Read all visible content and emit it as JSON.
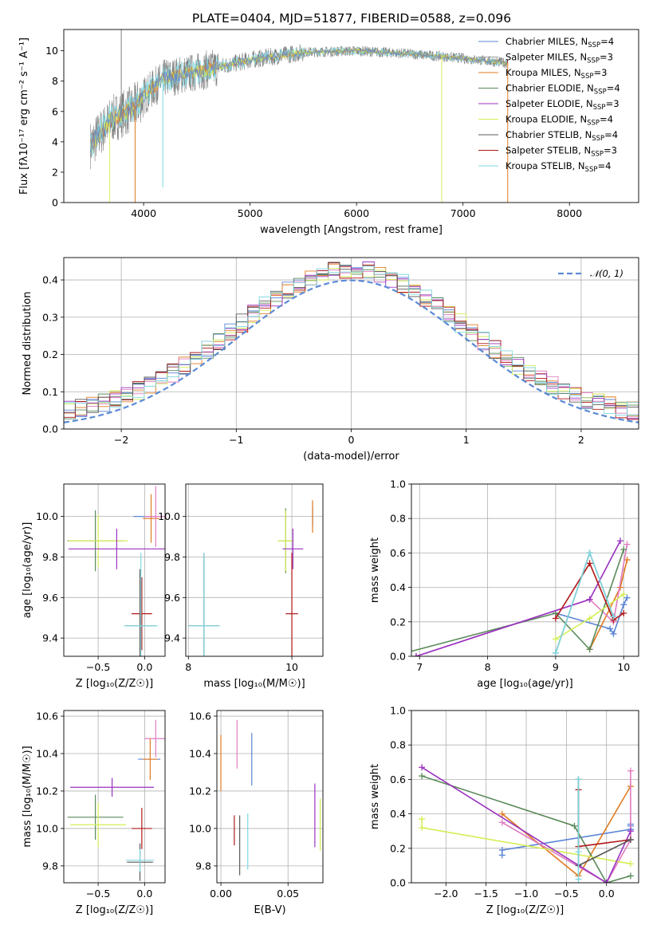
{
  "title": "PLATE=0404, MJD=51877, FIBERID=0588, z=0.096",
  "colors": {
    "Chabrier MILES": "#5b84d6",
    "Salpeter MILES": "#a0a0a0",
    "Kroupa MILES": "#e07b22",
    "Chabrier ELODIE": "#5a8a5a",
    "Salpeter ELODIE": "#9932c0",
    "Kroupa ELODIE": "#d4ee55",
    "Chabrier STELIB": "#5a5a5a",
    "Salpeter STELIB": "#b01818",
    "Kroupa STELIB": "#7fd8e0",
    "pink": "#e07bc0",
    "spectrum": "#808080",
    "gauss": "#5b8ad6"
  },
  "chart_data": [
    {
      "id": "spectrum",
      "type": "line",
      "xlabel": "wavelength [Angstrom, rest frame]",
      "ylabel": "Flux [fλ10⁻¹⁷ erg cm⁻² s⁻¹ A⁻¹]",
      "xlim": [
        3250,
        8650
      ],
      "ylim": [
        0,
        11.4
      ],
      "xticks": [
        "4000",
        "5000",
        "6000",
        "7000",
        "8000"
      ],
      "yticks": [
        "0",
        "2",
        "4",
        "6",
        "8",
        "10"
      ],
      "legend_position": "right",
      "series": [
        {
          "name": "Chabrier MILES, N",
          "sub": "SSP",
          "suffix": "=4"
        },
        {
          "name": "Salpeter MILES, N",
          "sub": "SSP",
          "suffix": "=3"
        },
        {
          "name": "Kroupa MILES, N",
          "sub": "SSP",
          "suffix": "=3"
        },
        {
          "name": "Chabrier ELODIE, N",
          "sub": "SSP",
          "suffix": "=4"
        },
        {
          "name": "Salpeter ELODIE, N",
          "sub": "SSP",
          "suffix": "=3"
        },
        {
          "name": "Kroupa ELODIE, N",
          "sub": "SSP",
          "suffix": "=4"
        },
        {
          "name": "Chabrier STELIB, N",
          "sub": "SSP",
          "suffix": "=4"
        },
        {
          "name": "Salpeter STELIB, N",
          "sub": "SSP",
          "suffix": "=3"
        },
        {
          "name": "Kroupa STELIB, N",
          "sub": "SSP",
          "suffix": "=4"
        }
      ],
      "envelope": [
        [
          3500,
          3.8
        ],
        [
          3700,
          5.5
        ],
        [
          3900,
          6.2
        ],
        [
          4000,
          7.0
        ],
        [
          4200,
          8.2
        ],
        [
          4500,
          8.6
        ],
        [
          5000,
          9.4
        ],
        [
          5500,
          9.9
        ],
        [
          6000,
          10.0
        ],
        [
          6500,
          9.8
        ],
        [
          7000,
          9.5
        ],
        [
          7400,
          9.2
        ]
      ]
    },
    {
      "id": "residuals",
      "type": "histogram",
      "xlabel": "(data-model)/error",
      "ylabel": "Normed distribution",
      "xlim": [
        -2.5,
        2.5
      ],
      "ylim": [
        0,
        0.46
      ],
      "xticks": [
        "−2",
        "−1",
        "0",
        "1",
        "2"
      ],
      "yticks": [
        "0.0",
        "0.1",
        "0.2",
        "0.3",
        "0.4"
      ],
      "legend": "𝒩(0, 1)",
      "legend_position": "top-right",
      "bin_width": 0.1
    },
    {
      "id": "age-vs-Z",
      "type": "errorbar",
      "xlabel": "Z [log₁₀(Z/Z☉)]",
      "ylabel": "age  [log₁₀(age/yr)]",
      "xlim": [
        -0.87,
        0.22
      ],
      "ylim": [
        9.31,
        10.16
      ],
      "xticks": [
        "−0.5",
        "0.0"
      ],
      "yticks": [
        "9.4",
        "9.6",
        "9.8",
        "10.0"
      ],
      "points": [
        {
          "c": "Chabrier MILES",
          "x": 0.0,
          "y": 10.0,
          "xe": 0.12,
          "ye": 0.0
        },
        {
          "c": "Kroupa MILES",
          "x": 0.07,
          "y": 9.99,
          "xe": 0.09,
          "ye": 0.12
        },
        {
          "c": "pink",
          "x": 0.12,
          "y": 10.0,
          "xe": 0.12,
          "ye": 0.15
        },
        {
          "c": "Chabrier ELODIE",
          "x": -0.53,
          "y": 9.88,
          "xe": 0.3,
          "ye": 0.15
        },
        {
          "c": "Kroupa ELODIE",
          "x": -0.5,
          "y": 9.88,
          "xe": 0.32,
          "ye": 0.13
        },
        {
          "c": "Salpeter ELODIE",
          "x": -0.3,
          "y": 9.84,
          "xe": 0.52,
          "ye": 0.1
        },
        {
          "c": "Salpeter STELIB",
          "x": -0.03,
          "y": 9.52,
          "xe": 0.11,
          "ye": 0.18
        },
        {
          "c": "Chabrier STELIB",
          "x": -0.05,
          "y": 9.46,
          "xe": 0.16,
          "ye": 0.28
        },
        {
          "c": "Kroupa STELIB",
          "x": -0.04,
          "y": 9.46,
          "xe": 0.18,
          "ye": 0.36
        }
      ]
    },
    {
      "id": "age-vs-mass",
      "type": "errorbar",
      "xlabel": "mass [log₁₀(M/M☉)]",
      "ylabel": "",
      "xlim": [
        7.95,
        10.6
      ],
      "ylim": [
        9.31,
        10.16
      ],
      "xticks": [
        "8",
        "10"
      ],
      "yticks": [
        "9.4",
        "9.6",
        "9.8",
        "10.0"
      ],
      "points": [
        {
          "c": "Chabrier MILES",
          "x": 10.4,
          "y": 10.0,
          "xe": 0.0,
          "ye": 0.05
        },
        {
          "c": "Kroupa MILES",
          "x": 10.4,
          "y": 10.0,
          "xe": 0.0,
          "ye": 0.08
        },
        {
          "c": "pink",
          "x": 10.4,
          "y": 10.01,
          "xe": 0.0,
          "ye": 0.0
        },
        {
          "c": "Chabrier ELODIE",
          "x": 9.88,
          "y": 9.88,
          "xe": 0.15,
          "ye": 0.16
        },
        {
          "c": "Kroupa ELODIE",
          "x": 9.88,
          "y": 9.88,
          "xe": 0.15,
          "ye": 0.15
        },
        {
          "c": "Salpeter ELODIE",
          "x": 10.02,
          "y": 9.84,
          "xe": 0.2,
          "ye": 0.1
        },
        {
          "c": "Salpeter STELIB",
          "x": 10.0,
          "y": 9.52,
          "xe": 0.12,
          "ye": 0.3
        },
        {
          "c": "Chabrier STELIB",
          "x": 8.3,
          "y": 9.46,
          "xe": 0.3,
          "ye": 0.36
        },
        {
          "c": "Kroupa STELIB",
          "x": 8.3,
          "y": 9.46,
          "xe": 0.3,
          "ye": 0.36
        }
      ]
    },
    {
      "id": "weight-vs-age",
      "type": "line",
      "xlabel": "age  [log₁₀(age/yr)]",
      "ylabel": "mass weight",
      "xlim": [
        6.88,
        10.22
      ],
      "ylim": [
        0,
        1.0
      ],
      "xticks": [
        "7",
        "8",
        "9",
        "10"
      ],
      "yticks": [
        "0.0",
        "0.2",
        "0.4",
        "0.6",
        "0.8",
        "1.0"
      ],
      "series": [
        {
          "c": "Chabrier MILES",
          "x": [
            9.0,
            9.8,
            9.85,
            10.0,
            10.05
          ],
          "y": [
            0.25,
            0.16,
            0.13,
            0.3,
            0.34
          ]
        },
        {
          "c": "Kroupa MILES",
          "x": [
            9.5,
            9.95,
            10.05
          ],
          "y": [
            0.04,
            0.4,
            0.56
          ]
        },
        {
          "c": "pink",
          "x": [
            6.95,
            9.5,
            9.85,
            10.05
          ],
          "y": [
            0.0,
            0.33,
            0.2,
            0.65
          ]
        },
        {
          "c": "Chabrier ELODIE",
          "x": [
            6.6,
            9.0,
            9.5,
            10.0
          ],
          "y": [
            0.0,
            0.25,
            0.04,
            0.62
          ]
        },
        {
          "c": "Kroupa ELODIE",
          "x": [
            9.0,
            9.5,
            10.0
          ],
          "y": [
            0.1,
            0.22,
            0.36
          ]
        },
        {
          "c": "Salpeter ELODIE",
          "x": [
            6.95,
            9.5,
            9.95
          ],
          "y": [
            0.0,
            0.33,
            0.67
          ]
        },
        {
          "c": "Salpeter STELIB",
          "x": [
            9.0,
            9.5,
            9.85,
            10.0
          ],
          "y": [
            0.22,
            0.54,
            0.21,
            0.25
          ]
        },
        {
          "c": "Chabrier STELIB",
          "x": [
            9.0,
            9.5,
            9.85
          ],
          "y": [
            0.02,
            0.6,
            0.23
          ]
        },
        {
          "c": "Kroupa STELIB",
          "x": [
            9.0,
            9.5,
            9.85
          ],
          "y": [
            0.02,
            0.6,
            0.23
          ]
        }
      ]
    },
    {
      "id": "mass-vs-Z",
      "type": "errorbar",
      "xlabel": "Z [log₁₀(Z/Z☉)]",
      "ylabel": "mass [log₁₀(M/M☉)]",
      "xlim": [
        -0.87,
        0.22
      ],
      "ylim": [
        9.71,
        10.63
      ],
      "xticks": [
        "−0.5",
        "0.0"
      ],
      "yticks": [
        "9.8",
        "10.0",
        "10.2",
        "10.4",
        "10.6"
      ],
      "points": [
        {
          "c": "pink",
          "x": 0.12,
          "y": 10.48,
          "xe": 0.12,
          "ye": 0.1
        },
        {
          "c": "Chabrier MILES",
          "x": 0.05,
          "y": 10.37,
          "xe": 0.12,
          "ye": 0.0
        },
        {
          "c": "Kroupa MILES",
          "x": 0.06,
          "y": 10.37,
          "xe": 0.08,
          "ye": 0.11
        },
        {
          "c": "Salpeter ELODIE",
          "x": -0.35,
          "y": 10.22,
          "xe": 0.45,
          "ye": 0.05
        },
        {
          "c": "Chabrier ELODIE",
          "x": -0.53,
          "y": 10.06,
          "xe": 0.3,
          "ye": 0.12
        },
        {
          "c": "Kroupa ELODIE",
          "x": -0.5,
          "y": 10.02,
          "xe": 0.3,
          "ye": 0.12
        },
        {
          "c": "Salpeter STELIB",
          "x": -0.03,
          "y": 10.0,
          "xe": 0.11,
          "ye": 0.11
        },
        {
          "c": "Chabrier STELIB",
          "x": -0.05,
          "y": 9.82,
          "xe": 0.14,
          "ye": 0.1
        },
        {
          "c": "Kroupa STELIB",
          "x": -0.05,
          "y": 9.83,
          "xe": 0.15,
          "ye": 0.06
        }
      ]
    },
    {
      "id": "mass-vs-EBV",
      "type": "errorbar",
      "xlabel": "E(B-V)",
      "ylabel": "",
      "xlim": [
        -0.003,
        0.076
      ],
      "ylim": [
        9.71,
        10.63
      ],
      "xticks": [
        "0.00",
        "0.05"
      ],
      "yticks": [
        "9.8",
        "10.0",
        "10.2",
        "10.4",
        "10.6"
      ],
      "points": [
        {
          "c": "Kroupa MILES",
          "x": 0.0,
          "y": 10.35,
          "xe": 0,
          "ye": 0.15
        },
        {
          "c": "pink",
          "x": 0.012,
          "y": 10.45,
          "xe": 0,
          "ye": 0.13
        },
        {
          "c": "Chabrier MILES",
          "x": 0.023,
          "y": 10.37,
          "xe": 0,
          "ye": 0.14
        },
        {
          "c": "Salpeter STELIB",
          "x": 0.01,
          "y": 9.99,
          "xe": 0,
          "ye": 0.08
        },
        {
          "c": "Chabrier STELIB",
          "x": 0.014,
          "y": 9.91,
          "xe": 0,
          "ye": 0.16
        },
        {
          "c": "Kroupa STELIB",
          "x": 0.02,
          "y": 9.93,
          "xe": 0,
          "ye": 0.15
        },
        {
          "c": "Salpeter ELODIE",
          "x": 0.07,
          "y": 10.07,
          "xe": 0,
          "ye": 0.17
        },
        {
          "c": "Kroupa ELODIE",
          "x": 0.074,
          "y": 10.02,
          "xe": 0,
          "ye": 0.14
        }
      ]
    },
    {
      "id": "weight-vs-Z",
      "type": "line",
      "xlabel": "Z [log₁₀(Z/Z☉)]",
      "ylabel": "mass weight",
      "xlim": [
        -2.43,
        0.4
      ],
      "ylim": [
        0,
        1.0
      ],
      "xticks": [
        "−2.0",
        "−1.5",
        "−1.0",
        "−0.5",
        "0.0"
      ],
      "yticks": [
        "0.0",
        "0.2",
        "0.4",
        "0.6",
        "0.8",
        "1.0"
      ],
      "series": [
        {
          "c": "Chabrier MILES",
          "x": [
            -1.3,
            -1.3,
            0.3,
            0.3,
            0.3
          ],
          "y": [
            0.16,
            0.19,
            0.31,
            0.33,
            0.34
          ]
        },
        {
          "c": "Kroupa MILES",
          "x": [
            -1.3,
            -0.35,
            0.3
          ],
          "y": [
            0.4,
            0.04,
            0.56
          ]
        },
        {
          "c": "pink",
          "x": [
            -1.3,
            0.0,
            0.3,
            0.3
          ],
          "y": [
            0.35,
            0.0,
            0.25,
            0.65
          ]
        },
        {
          "c": "Chabrier ELODIE",
          "x": [
            -2.3,
            -0.4,
            0.0,
            0.3
          ],
          "y": [
            0.62,
            0.33,
            0.0,
            0.04
          ]
        },
        {
          "c": "Kroupa ELODIE",
          "x": [
            -2.3,
            -2.3,
            0.3
          ],
          "y": [
            0.37,
            0.32,
            0.11
          ]
        },
        {
          "c": "Salpeter ELODIE",
          "x": [
            -2.3,
            0.0,
            0.3
          ],
          "y": [
            0.67,
            0.0,
            0.3
          ]
        },
        {
          "c": "Salpeter STELIB",
          "x": [
            -0.35,
            -0.35,
            0.3
          ],
          "y": [
            0.54,
            0.21,
            0.25
          ]
        },
        {
          "c": "Chabrier STELIB",
          "x": [
            -0.35,
            -0.35,
            0.3
          ],
          "y": [
            0.6,
            0.1,
            0.25
          ]
        },
        {
          "c": "Kroupa STELIB",
          "x": [
            -0.35,
            -0.35,
            -0.35
          ],
          "y": [
            0.6,
            0.18,
            0.02
          ]
        }
      ]
    }
  ]
}
